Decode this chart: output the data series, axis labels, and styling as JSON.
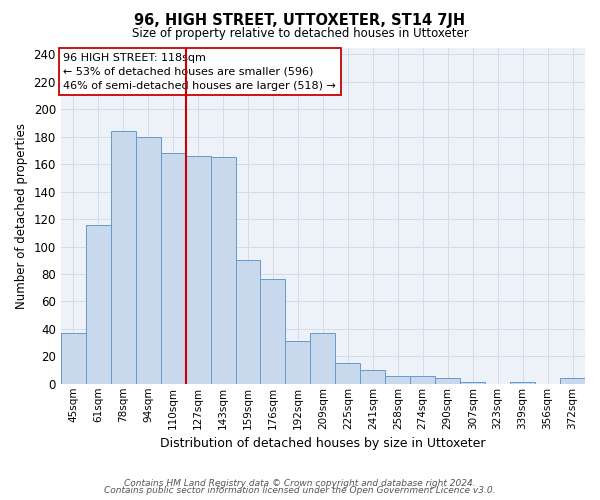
{
  "title": "96, HIGH STREET, UTTOXETER, ST14 7JH",
  "subtitle": "Size of property relative to detached houses in Uttoxeter",
  "xlabel": "Distribution of detached houses by size in Uttoxeter",
  "ylabel": "Number of detached properties",
  "categories": [
    "45sqm",
    "61sqm",
    "78sqm",
    "94sqm",
    "110sqm",
    "127sqm",
    "143sqm",
    "159sqm",
    "176sqm",
    "192sqm",
    "209sqm",
    "225sqm",
    "241sqm",
    "258sqm",
    "274sqm",
    "290sqm",
    "307sqm",
    "323sqm",
    "339sqm",
    "356sqm",
    "372sqm"
  ],
  "values": [
    37,
    116,
    184,
    180,
    168,
    166,
    165,
    90,
    76,
    31,
    37,
    15,
    10,
    6,
    6,
    4,
    1,
    0,
    1,
    0,
    4
  ],
  "bar_color": "#c8d9ee",
  "bar_edge_color": "#6699cc",
  "vline_x_index": 4,
  "vline_color": "#cc0000",
  "annotation_line1": "96 HIGH STREET: 118sqm",
  "annotation_line2": "← 53% of detached houses are smaller (596)",
  "annotation_line3": "46% of semi-detached houses are larger (518) →",
  "annotation_box_color": "#ffffff",
  "annotation_box_edge_color": "#cc0000",
  "ylim": [
    0,
    245
  ],
  "yticks": [
    0,
    20,
    40,
    60,
    80,
    100,
    120,
    140,
    160,
    180,
    200,
    220,
    240
  ],
  "footnote_line1": "Contains HM Land Registry data © Crown copyright and database right 2024.",
  "footnote_line2": "Contains public sector information licensed under the Open Government Licence v3.0.",
  "grid_color": "#d4dce8",
  "background_color": "#edf2f8"
}
